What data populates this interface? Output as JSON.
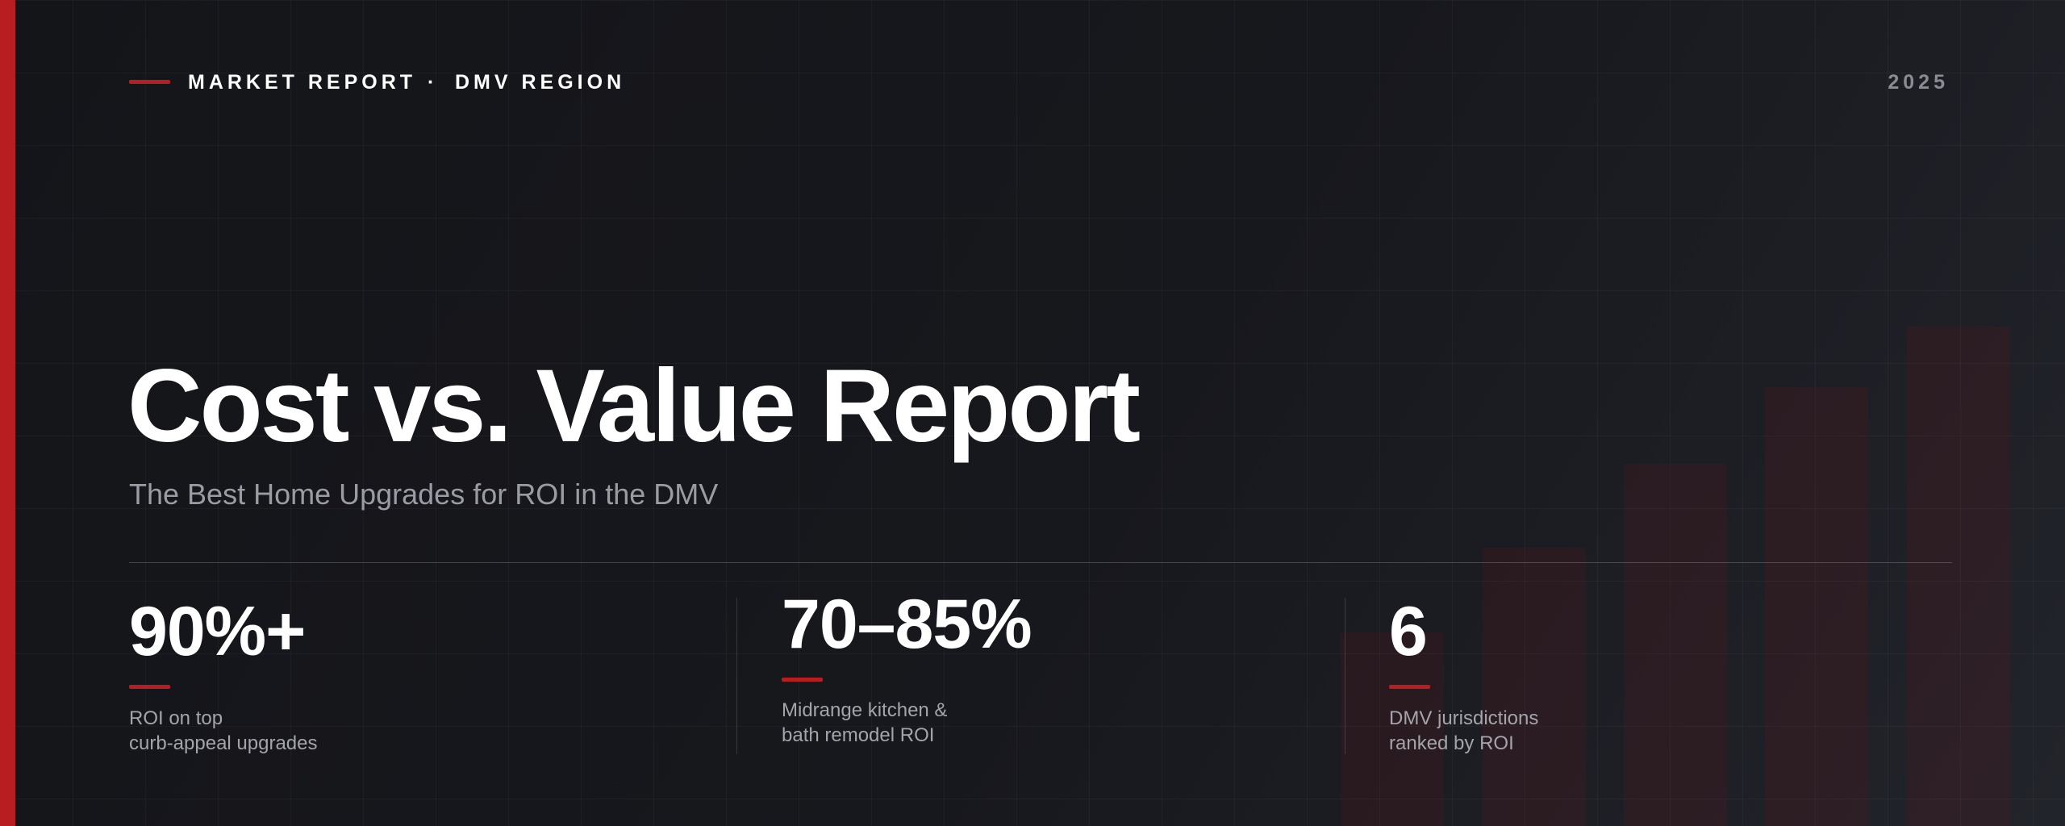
{
  "header": {
    "kicker": "MARKET REPORT",
    "separator": "·",
    "region": "DMV REGION",
    "year": "2025"
  },
  "title": "Cost vs. Value Report",
  "subtitle": "The Best Home Upgrades for ROI in the DMV",
  "stats": [
    {
      "value": "90%+",
      "label": [
        "ROI on top",
        "curb-appeal upgrades"
      ]
    },
    {
      "value": "70–85%",
      "label": [
        "Midrange kitchen &",
        "bath remodel ROI"
      ]
    },
    {
      "value": "6",
      "label": [
        "DMV jurisdictions",
        "ranked by ROI"
      ]
    }
  ]
}
